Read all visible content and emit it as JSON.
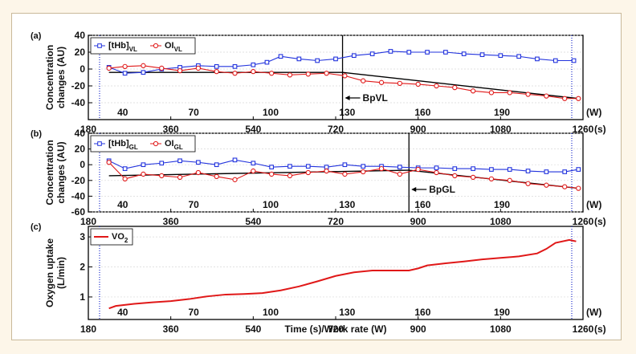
{
  "colors": {
    "thb": "#2233dd",
    "oi": "#e01818",
    "vo2": "#e01818",
    "trend": "#000000",
    "vline": "#1a2acc"
  },
  "x_tick_unit": "(s)",
  "work_rate_unit": "(W)",
  "x_axis_label": "Time (s)/Work rate (W)",
  "chart_data": [
    {
      "type": "line",
      "panel_label": "(a)",
      "ylabel_line1": "Concentration",
      "ylabel_line2": "changes (AU)",
      "xlim": [
        180,
        1260
      ],
      "ylim": [
        -60,
        40
      ],
      "yticks": [
        40,
        20,
        0,
        -20,
        -40
      ],
      "yticks_labels": [
        "40",
        "20",
        "0",
        "-20",
        "-40"
      ],
      "xticks": [
        180,
        360,
        540,
        720,
        900,
        1080,
        1260
      ],
      "work_rates": [
        {
          "x": 255,
          "label": "40"
        },
        {
          "x": 410,
          "label": "70"
        },
        {
          "x": 578,
          "label": "100"
        },
        {
          "x": 745,
          "label": "130"
        },
        {
          "x": 910,
          "label": "160"
        },
        {
          "x": 1083,
          "label": "190"
        }
      ],
      "legend": [
        {
          "label_main": "[tHb]",
          "label_sub": "VL",
          "marker": "square",
          "color": "#2233dd"
        },
        {
          "label_main": "OI",
          "label_sub": "VL",
          "marker": "circle",
          "color": "#e01818"
        }
      ],
      "breakpoint": {
        "x": 735,
        "label": "BpVL"
      },
      "series": [
        {
          "key": "thb",
          "marker": "square",
          "x": [
            225,
            260,
            300,
            340,
            380,
            420,
            460,
            500,
            540,
            570,
            600,
            640,
            680,
            720,
            760,
            800,
            840,
            880,
            920,
            960,
            1000,
            1040,
            1080,
            1120,
            1160,
            1200,
            1240
          ],
          "y": [
            2,
            -5,
            -4,
            0,
            2,
            4,
            3,
            3,
            5,
            8,
            15,
            12,
            10,
            12,
            16,
            18,
            21,
            20,
            20,
            20,
            18,
            17,
            16,
            15,
            12,
            10,
            10
          ]
        },
        {
          "key": "oi",
          "marker": "circle",
          "x": [
            225,
            260,
            300,
            340,
            380,
            420,
            460,
            500,
            540,
            580,
            620,
            660,
            700,
            740,
            780,
            820,
            860,
            900,
            940,
            980,
            1020,
            1060,
            1100,
            1140,
            1180,
            1220,
            1250
          ],
          "y": [
            1,
            3,
            4,
            1,
            -2,
            1,
            -3,
            -5,
            -3,
            -5,
            -7,
            -6,
            -5,
            -8,
            -14,
            -16,
            -17,
            -18,
            -20,
            -22,
            -26,
            -28,
            -28,
            -30,
            -32,
            -35,
            -35
          ]
        }
      ],
      "trend": [
        {
          "x": 225,
          "y": -4
        },
        {
          "x": 735,
          "y": -4
        },
        {
          "x": 1250,
          "y": -35
        }
      ]
    },
    {
      "type": "line",
      "panel_label": "(b)",
      "ylabel_line1": "Concentration",
      "ylabel_line2": "changes (AU)",
      "xlim": [
        180,
        1260
      ],
      "ylim": [
        -60,
        40
      ],
      "yticks": [
        40,
        20,
        0,
        -20,
        -40,
        -60
      ],
      "yticks_labels": [
        "40",
        "20",
        "0",
        "-20",
        "-40",
        "-60"
      ],
      "xticks": [
        180,
        360,
        540,
        720,
        900,
        1080,
        1260
      ],
      "work_rates": [
        {
          "x": 255,
          "label": "40"
        },
        {
          "x": 410,
          "label": "70"
        },
        {
          "x": 578,
          "label": "100"
        },
        {
          "x": 745,
          "label": "130"
        },
        {
          "x": 910,
          "label": "160"
        },
        {
          "x": 1083,
          "label": "190"
        }
      ],
      "legend": [
        {
          "label_main": "[tHb]",
          "label_sub": "GL",
          "marker": "square",
          "color": "#2233dd"
        },
        {
          "label_main": "OI",
          "label_sub": "GL",
          "marker": "circle",
          "color": "#e01818"
        }
      ],
      "breakpoint": {
        "x": 880,
        "label": "BpGL"
      },
      "series": [
        {
          "key": "thb",
          "marker": "square",
          "x": [
            225,
            260,
            300,
            340,
            380,
            420,
            460,
            500,
            540,
            580,
            620,
            660,
            700,
            740,
            780,
            820,
            860,
            900,
            940,
            980,
            1020,
            1060,
            1100,
            1140,
            1180,
            1220,
            1250
          ],
          "y": [
            5,
            -5,
            0,
            2,
            5,
            3,
            0,
            6,
            2,
            -3,
            -2,
            -2,
            -3,
            0,
            -2,
            -2,
            -3,
            -4,
            -4,
            -5,
            -5,
            -6,
            -6,
            -8,
            -9,
            -9,
            -6
          ]
        },
        {
          "key": "oi",
          "marker": "circle",
          "x": [
            225,
            260,
            300,
            340,
            380,
            420,
            460,
            500,
            540,
            580,
            620,
            660,
            700,
            740,
            780,
            820,
            860,
            900,
            940,
            980,
            1020,
            1060,
            1100,
            1140,
            1180,
            1220,
            1250
          ],
          "y": [
            3,
            -18,
            -12,
            -14,
            -16,
            -10,
            -15,
            -19,
            -8,
            -12,
            -14,
            -10,
            -8,
            -12,
            -9,
            -5,
            -12,
            -6,
            -10,
            -14,
            -16,
            -18,
            -20,
            -24,
            -26,
            -28,
            -30
          ]
        }
      ],
      "trend": [
        {
          "x": 225,
          "y": -14
        },
        {
          "x": 880,
          "y": -7
        },
        {
          "x": 1250,
          "y": -30
        }
      ]
    },
    {
      "type": "line",
      "panel_label": "(c)",
      "ylabel_line1": "Oxygen uptake",
      "ylabel_line2": "(L/min)",
      "xlim": [
        180,
        1260
      ],
      "ylim": [
        0.25,
        3.35
      ],
      "yticks": [
        3,
        2,
        1
      ],
      "yticks_labels": [
        "3",
        "2",
        "1"
      ],
      "xticks": [
        180,
        360,
        540,
        720,
        900,
        1080,
        1260
      ],
      "work_rates": [
        {
          "x": 255,
          "label": "40"
        },
        {
          "x": 410,
          "label": "70"
        },
        {
          "x": 578,
          "label": "100"
        },
        {
          "x": 745,
          "label": "130"
        },
        {
          "x": 910,
          "label": "160"
        },
        {
          "x": 1083,
          "label": "190"
        }
      ],
      "legend": [
        {
          "label_main": "VO",
          "label_sub": "2",
          "marker": "line",
          "color": "#e01818"
        }
      ],
      "series": [
        {
          "key": "vo2",
          "marker": "line",
          "x": [
            225,
            240,
            280,
            320,
            360,
            400,
            440,
            480,
            520,
            560,
            600,
            640,
            680,
            720,
            760,
            800,
            840,
            880,
            900,
            920,
            960,
            1000,
            1040,
            1080,
            1120,
            1160,
            1180,
            1200,
            1230,
            1245
          ],
          "y": [
            0.62,
            0.7,
            0.77,
            0.82,
            0.86,
            0.93,
            1.02,
            1.08,
            1.1,
            1.13,
            1.22,
            1.35,
            1.52,
            1.7,
            1.82,
            1.88,
            1.88,
            1.88,
            1.95,
            2.05,
            2.12,
            2.18,
            2.25,
            2.3,
            2.35,
            2.45,
            2.6,
            2.8,
            2.9,
            2.85
          ]
        }
      ]
    }
  ]
}
